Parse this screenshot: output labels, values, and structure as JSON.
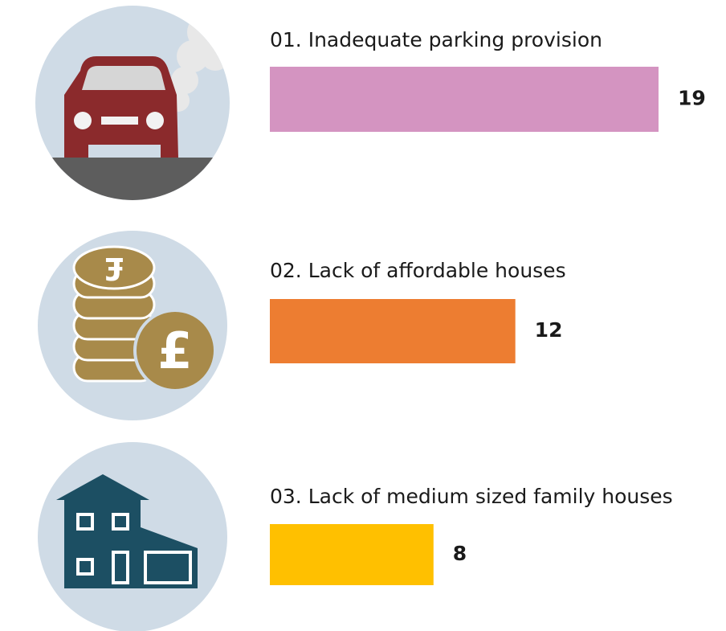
{
  "chart_data": {
    "type": "bar",
    "orientation": "horizontal",
    "categories": [
      "01. Inadequate parking provision",
      "02. Lack of affordable houses",
      "03. Lack of medium sized family houses"
    ],
    "values": [
      19,
      12,
      8
    ],
    "colors": [
      "#d494c1",
      "#ed7d31",
      "#ffc000"
    ]
  }
}
